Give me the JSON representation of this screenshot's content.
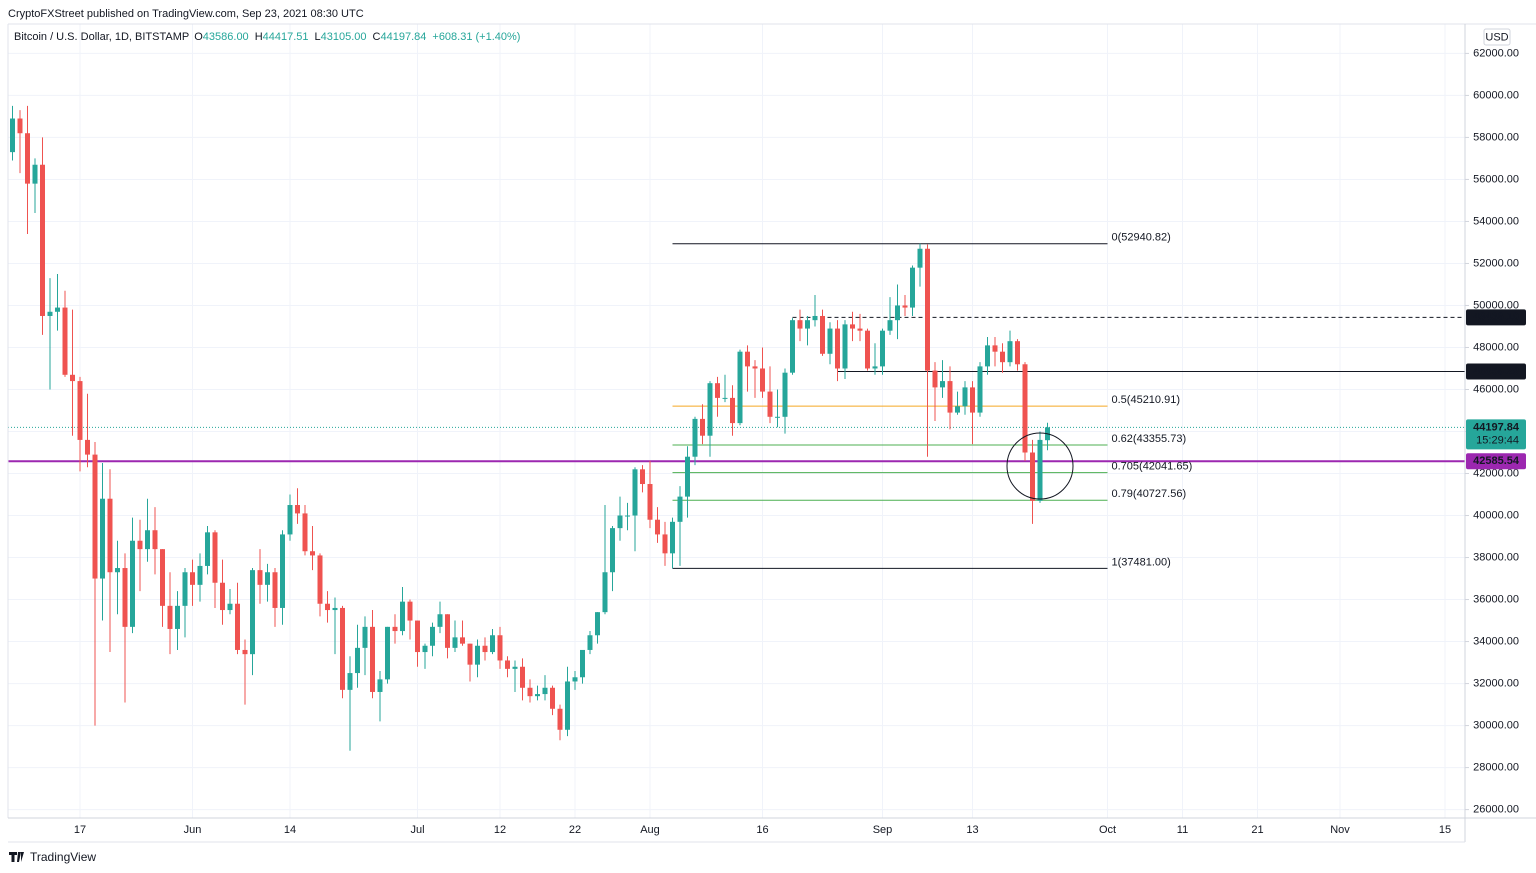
{
  "header": "CryptoFXStreet published on TradingView.com, Sep 23, 2021 08:30 UTC",
  "footer": "TradingView",
  "chart_data": {
    "type": "candlestick",
    "legend": {
      "symbol": "Bitcoin / U.S. Dollar, 1D, BITSTAMP",
      "items": [
        {
          "key": "O",
          "value": "43586.00"
        },
        {
          "key": "H",
          "value": "44417.51"
        },
        {
          "key": "L",
          "value": "43105.00"
        },
        {
          "key": "C",
          "value": "44197.84"
        }
      ],
      "change": "+608.31 (+1.40%)"
    },
    "currency": "USD",
    "up_color": "#26a69a",
    "down_color": "#ef5350",
    "x": [
      "May 8",
      "May 9",
      "May 10",
      "May 11",
      "May 12",
      "May 13",
      "May 14",
      "May 15",
      "May 16",
      "May 17",
      "May 18",
      "May 19",
      "May 20",
      "May 21",
      "May 22",
      "May 23",
      "May 24",
      "May 25",
      "May 26",
      "May 27",
      "May 28",
      "May 29",
      "May 30",
      "May 31",
      "Jun 1",
      "Jun 2",
      "Jun 3",
      "Jun 4",
      "Jun 5",
      "Jun 6",
      "Jun 7",
      "Jun 8",
      "Jun 9",
      "Jun 10",
      "Jun 11",
      "Jun 12",
      "Jun 13",
      "Jun 14",
      "Jun 15",
      "Jun 16",
      "Jun 17",
      "Jun 18",
      "Jun 19",
      "Jun 20",
      "Jun 21",
      "Jun 22",
      "Jun 23",
      "Jun 24",
      "Jun 25",
      "Jun 26",
      "Jun 27",
      "Jun 28",
      "Jun 29",
      "Jun 30",
      "Jul 1",
      "Jul 2",
      "Jul 3",
      "Jul 4",
      "Jul 5",
      "Jul 6",
      "Jul 7",
      "Jul 8",
      "Jul 9",
      "Jul 10",
      "Jul 11",
      "Jul 12",
      "Jul 13",
      "Jul 14",
      "Jul 15",
      "Jul 16",
      "Jul 17",
      "Jul 18",
      "Jul 19",
      "Jul 20",
      "Jul 21",
      "Jul 22",
      "Jul 23",
      "Jul 24",
      "Jul 25",
      "Jul 26",
      "Jul 27",
      "Jul 28",
      "Jul 29",
      "Jul 30",
      "Jul 31",
      "Aug 1",
      "Aug 2",
      "Aug 3",
      "Aug 4",
      "Aug 5",
      "Aug 6",
      "Aug 7",
      "Aug 8",
      "Aug 9",
      "Aug 10",
      "Aug 11",
      "Aug 12",
      "Aug 13",
      "Aug 14",
      "Aug 15",
      "Aug 16",
      "Aug 17",
      "Aug 18",
      "Aug 19",
      "Aug 20",
      "Aug 21",
      "Aug 22",
      "Aug 23",
      "Aug 24",
      "Aug 25",
      "Aug 26",
      "Aug 27",
      "Aug 28",
      "Aug 29",
      "Aug 30",
      "Aug 31",
      "Sep 1",
      "Sep 2",
      "Sep 3",
      "Sep 4",
      "Sep 5",
      "Sep 6",
      "Sep 7",
      "Sep 8",
      "Sep 9",
      "Sep 10",
      "Sep 11",
      "Sep 12",
      "Sep 13",
      "Sep 14",
      "Sep 15",
      "Sep 16",
      "Sep 17",
      "Sep 18",
      "Sep 19",
      "Sep 20",
      "Sep 21",
      "Sep 22",
      "Sep 23"
    ],
    "open": [
      57300,
      58900,
      58200,
      55800,
      56700,
      49500,
      49700,
      49900,
      46700,
      46400,
      43600,
      42900,
      37000,
      40800,
      37300,
      37500,
      34700,
      38800,
      38400,
      39300,
      38400,
      35700,
      34600,
      35700,
      37300,
      36700,
      37600,
      39200,
      36800,
      35500,
      35800,
      33600,
      33400,
      37400,
      36700,
      37300,
      35600,
      39100,
      40500,
      40100,
      38300,
      38100,
      35800,
      35500,
      35600,
      31700,
      32500,
      33700,
      34700,
      31600,
      32200,
      34700,
      34500,
      35900,
      35000,
      33500,
      33800,
      34700,
      35300,
      33700,
      34200,
      33900,
      32900,
      33800,
      33500,
      34300,
      33100,
      32700,
      32800,
      31800,
      31400,
      31500,
      31800,
      30800,
      29800,
      32100,
      32300,
      33600,
      34300,
      35400,
      37300,
      39400,
      40000,
      40000,
      42200,
      41500,
      39800,
      39100,
      38200,
      39700,
      40900,
      42800,
      44600,
      43800,
      46300,
      45600,
      45600,
      44400,
      47800,
      47100,
      47000,
      45900,
      44700,
      44700,
      46800,
      49300,
      48900,
      49300,
      49500,
      47700,
      48900,
      47000,
      49100,
      48900,
      48800,
      47000,
      47100,
      48800,
      49300,
      50000,
      49900,
      51800,
      52700,
      46900,
      46100,
      46400,
      44900,
      45200,
      46100,
      44900,
      47100,
      48100,
      47800,
      47300,
      48300,
      47200,
      43000,
      40700,
      43586
    ],
    "high": [
      59500,
      59300,
      59500,
      57000,
      58000,
      51300,
      51500,
      50700,
      49800,
      46600,
      45800,
      43500,
      42500,
      42200,
      38800,
      38200,
      39900,
      39800,
      40800,
      40400,
      38400,
      37300,
      36400,
      37500,
      37900,
      38200,
      39500,
      39300,
      37900,
      36500,
      36800,
      34100,
      37500,
      38400,
      37700,
      37500,
      39300,
      41000,
      41300,
      40500,
      39500,
      38200,
      36400,
      36100,
      35700,
      33300,
      34800,
      35200,
      35500,
      32600,
      34700,
      35300,
      36600,
      36000,
      35000,
      33900,
      34900,
      35900,
      35300,
      35000,
      35000,
      33900,
      34100,
      34200,
      34600,
      34700,
      33300,
      33100,
      33200,
      32200,
      31900,
      32400,
      31900,
      31000,
      32800,
      32600,
      33600,
      34500,
      35400,
      40500,
      39500,
      40900,
      40600,
      42300,
      42400,
      42600,
      40400,
      39700,
      39900,
      41400,
      43300,
      44700,
      45300,
      46400,
      46600,
      46700,
      46200,
      47900,
      48100,
      47400,
      48000,
      47100,
      46000,
      47000,
      49400,
      49800,
      49500,
      50500,
      49800,
      49200,
      49300,
      49300,
      49700,
      49600,
      48900,
      48200,
      48900,
      50400,
      51000,
      50500,
      51900,
      52940,
      52900,
      47300,
      47400,
      47100,
      45900,
      46400,
      46400,
      47300,
      48500,
      48500,
      48200,
      48800,
      48400,
      47300,
      43600,
      44000,
      44417.51
    ],
    "low": [
      56900,
      56300,
      53400,
      54400,
      48600,
      46000,
      48800,
      46600,
      43800,
      42100,
      42300,
      30000,
      35000,
      33500,
      35300,
      31100,
      34400,
      36400,
      37800,
      37200,
      34700,
      33400,
      33600,
      34200,
      35700,
      35900,
      37200,
      35600,
      34800,
      35300,
      33400,
      31000,
      32400,
      35800,
      35900,
      34700,
      34800,
      38800,
      39600,
      38100,
      37400,
      35200,
      34900,
      33400,
      31300,
      28800,
      31800,
      32400,
      31300,
      30200,
      32000,
      33900,
      34300,
      34100,
      32800,
      32700,
      33300,
      34400,
      33200,
      33500,
      33800,
      32100,
      32300,
      33100,
      33400,
      32700,
      32300,
      31600,
      31200,
      31100,
      31200,
      31200,
      30500,
      29300,
      29500,
      31700,
      32000,
      33400,
      33900,
      35300,
      36400,
      38800,
      39300,
      38300,
      41100,
      39400,
      38700,
      37600,
      37481,
      37600,
      39900,
      42400,
      43400,
      42800,
      44700,
      45400,
      43800,
      44300,
      45900,
      45600,
      45600,
      44400,
      44200,
      43900,
      46700,
      48300,
      48100,
      49000,
      47600,
      47200,
      46400,
      46500,
      48300,
      48300,
      46900,
      46700,
      46700,
      48600,
      48400,
      49500,
      49500,
      50900,
      42800,
      44500,
      45600,
      44100,
      44800,
      44800,
      43400,
      44700,
      46700,
      47100,
      46800,
      47100,
      46900,
      42600,
      39600,
      40600,
      43105
    ],
    "close": [
      58900,
      58200,
      55800,
      56700,
      49500,
      49700,
      49900,
      46700,
      46400,
      43600,
      42900,
      37000,
      40800,
      37300,
      37500,
      34700,
      38800,
      38400,
      39300,
      38400,
      35700,
      34600,
      35700,
      37300,
      36700,
      37600,
      39200,
      36800,
      35500,
      35800,
      33600,
      33400,
      37400,
      36700,
      37300,
      35600,
      39100,
      40500,
      40100,
      38300,
      38100,
      35800,
      35500,
      35600,
      31700,
      32500,
      33700,
      34700,
      31600,
      32200,
      34700,
      34500,
      35900,
      35000,
      33500,
      33800,
      34700,
      35300,
      33700,
      34200,
      33900,
      32900,
      33800,
      33500,
      34300,
      33100,
      32700,
      32800,
      31800,
      31400,
      31500,
      31800,
      30800,
      29800,
      32100,
      32300,
      33600,
      34300,
      35400,
      37300,
      39400,
      40000,
      40000,
      42200,
      41500,
      39800,
      39100,
      38200,
      39700,
      40900,
      42800,
      44600,
      43800,
      46300,
      45600,
      45600,
      44400,
      47800,
      47100,
      47000,
      45900,
      44700,
      44700,
      46800,
      49300,
      48900,
      49300,
      49500,
      47700,
      48900,
      47000,
      49100,
      48900,
      48800,
      47000,
      47100,
      48800,
      49300,
      50000,
      49900,
      51800,
      52700,
      46900,
      46100,
      46400,
      44900,
      45200,
      46100,
      44900,
      47100,
      48100,
      47800,
      47300,
      48300,
      47200,
      43000,
      40700,
      43600,
      44197.84
    ],
    "ylim": [
      25600,
      63400
    ],
    "yticks": [
      {
        "value": 26000,
        "label": "26000.00"
      },
      {
        "value": 28000,
        "label": "28000.00"
      },
      {
        "value": 30000,
        "label": "30000.00"
      },
      {
        "value": 32000,
        "label": "32000.00"
      },
      {
        "value": 34000,
        "label": "34000.00"
      },
      {
        "value": 36000,
        "label": "36000.00"
      },
      {
        "value": 38000,
        "label": "38000.00"
      },
      {
        "value": 40000,
        "label": "40000.00"
      },
      {
        "value": 42000,
        "label": "42000.00"
      },
      {
        "value": 44000,
        "label": "44000.00"
      },
      {
        "value": 46000,
        "label": "46000.00"
      },
      {
        "value": 48000,
        "label": "48000.00"
      },
      {
        "value": 50000,
        "label": "50000.00"
      },
      {
        "value": 52000,
        "label": "52000.00"
      },
      {
        "value": 54000,
        "label": "54000.00"
      },
      {
        "value": 56000,
        "label": "56000.00"
      },
      {
        "value": 58000,
        "label": "58000.00"
      },
      {
        "value": 60000,
        "label": "60000.00"
      },
      {
        "value": 62000,
        "label": "62000.00"
      }
    ],
    "xticks": [
      {
        "value": "May 17",
        "label": "17"
      },
      {
        "value": "Jun 1",
        "label": "Jun"
      },
      {
        "value": "Jun 14",
        "label": "14"
      },
      {
        "value": "Jul 1",
        "label": "Jul"
      },
      {
        "value": "Jul 12",
        "label": "12"
      },
      {
        "value": "Jul 22",
        "label": "22"
      },
      {
        "value": "Aug 1",
        "label": "Aug"
      },
      {
        "value": "Aug 16",
        "label": "16"
      },
      {
        "value": "Sep 1",
        "label": "Sep"
      },
      {
        "value": "Sep 13",
        "label": "13"
      },
      {
        "value": "Oct 1",
        "label": "Oct"
      },
      {
        "value": "Oct 11",
        "label": "11"
      },
      {
        "value": "Oct 21",
        "label": "21"
      },
      {
        "value": "Nov 1",
        "label": "Nov"
      },
      {
        "value": "Nov 15",
        "label": "15"
      }
    ],
    "grid": true,
    "lines": [
      {
        "value": 49436.1,
        "label": "49436.10",
        "color": "#131722",
        "style": "dashed",
        "start": "Aug 20"
      },
      {
        "value": 46856.29,
        "label": "46856.29",
        "color": "#131722",
        "style": "solid",
        "start": "Aug 26"
      },
      {
        "value": 42585.54,
        "label": "42585.54",
        "color": "#9c27b0",
        "style": "bold"
      }
    ],
    "last_price": {
      "value": 44197.84,
      "label": "44197.84",
      "color": "#26a69a",
      "countdown": "15:29:44"
    },
    "fib_start": "Aug 4",
    "fib_end": "Oct 1",
    "fib_levels": [
      {
        "value": 52940.82,
        "label": "0(52940.82)",
        "color": "#131722"
      },
      {
        "value": 45210.91,
        "label": "0.5(45210.91)",
        "color": "#f5a623"
      },
      {
        "value": 43355.73,
        "label": "0.62(43355.73)",
        "color": "#4caf50"
      },
      {
        "value": 42041.65,
        "label": "0.705(42041.65)",
        "color": "#4caf50",
        "label_color": "#1b7a1b"
      },
      {
        "value": 40727.56,
        "label": "0.79(40727.56)",
        "color": "#4caf50"
      },
      {
        "value": 37481.0,
        "label": "1(37481.00)",
        "color": "#131722"
      }
    ]
  }
}
